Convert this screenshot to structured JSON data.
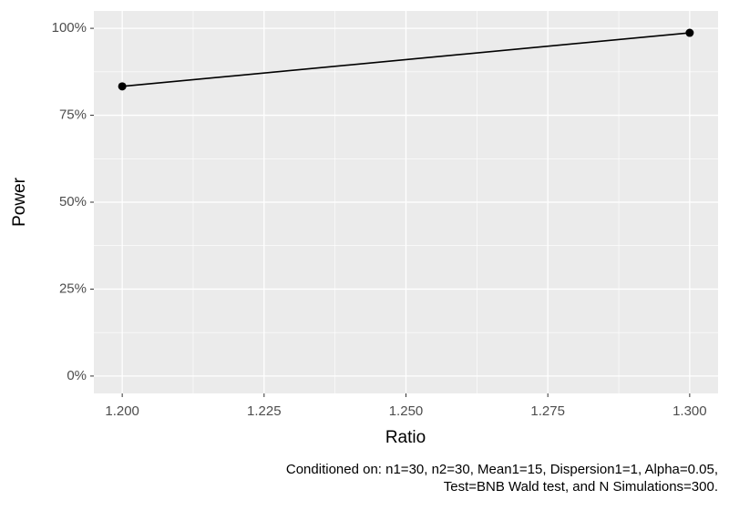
{
  "chart_data": {
    "type": "line",
    "x_label": "Ratio",
    "y_label": "Power",
    "caption": [
      "Conditioned on: n1=30, n2=30, Mean1=15, Dispersion1=1, Alpha=0.05,",
      "Test=BNB Wald test, and N Simulations=300."
    ],
    "x": [
      1.2,
      1.3
    ],
    "series": [
      {
        "color": "#000000",
        "values": [
          83.3,
          98.7
        ]
      }
    ],
    "xlim": [
      1.195,
      1.305
    ],
    "ylim": [
      -5,
      105
    ],
    "xticks": [
      {
        "value": 1.2,
        "label": "1.200"
      },
      {
        "value": 1.225,
        "label": "1.225"
      },
      {
        "value": 1.25,
        "label": "1.250"
      },
      {
        "value": 1.275,
        "label": "1.275"
      },
      {
        "value": 1.3,
        "label": "1.300"
      }
    ],
    "yticks": [
      {
        "value": 0,
        "label": "0%"
      },
      {
        "value": 25,
        "label": "25%"
      },
      {
        "value": 50,
        "label": "50%"
      },
      {
        "value": 75,
        "label": "75%"
      },
      {
        "value": 100,
        "label": "100%"
      }
    ],
    "grid": true
  }
}
